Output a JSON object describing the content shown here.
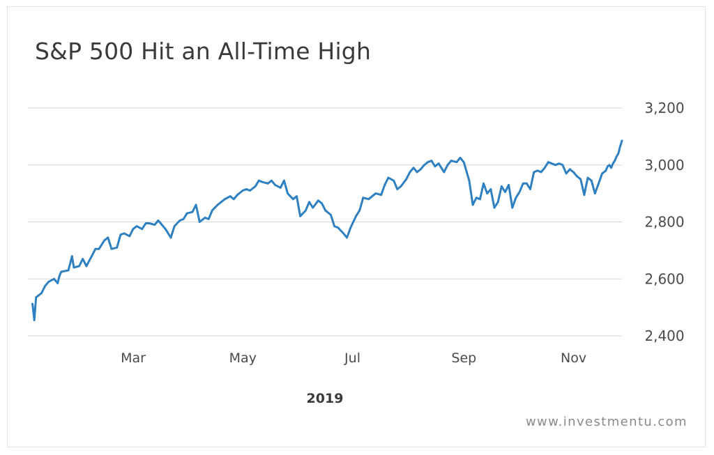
{
  "title": "S&P 500 Hit an All-Time High",
  "source": "www.investmentu.com",
  "colors": {
    "line": "#2f80c0",
    "grid": "#d6d6d6",
    "text": "#3a3a3a",
    "source_text": "#8a8a8a"
  },
  "chart_data": {
    "type": "line",
    "title": "S&P 500 Hit an All-Time High",
    "xlabel": "2019",
    "ylabel": "",
    "ylim": [
      2400,
      3200
    ],
    "y_ticks": [
      2400,
      2600,
      2800,
      3000,
      3200
    ],
    "y_tick_labels": [
      "2,400",
      "2,600",
      "2,800",
      "3,000",
      "3,200"
    ],
    "x_tick_labels": [
      {
        "date": "2019-03-01",
        "label": "Mar"
      },
      {
        "date": "2019-05-01",
        "label": "May"
      },
      {
        "date": "2019-07-01",
        "label": "Jul"
      },
      {
        "date": "2019-09-01",
        "label": "Sep"
      },
      {
        "date": "2019-11-01",
        "label": "Nov"
      }
    ],
    "xlim": [
      "2019-01-01",
      "2019-11-26"
    ],
    "grid": "horizontal",
    "series": [
      {
        "points": [
          [
            "2019-01-02",
            2512
          ],
          [
            "2019-01-03",
            2455
          ],
          [
            "2019-01-04",
            2535
          ],
          [
            "2019-01-07",
            2550
          ],
          [
            "2019-01-09",
            2575
          ],
          [
            "2019-01-11",
            2590
          ],
          [
            "2019-01-14",
            2600
          ],
          [
            "2019-01-16",
            2585
          ],
          [
            "2019-01-17",
            2610
          ],
          [
            "2019-01-18",
            2625
          ],
          [
            "2019-01-22",
            2630
          ],
          [
            "2019-01-24",
            2680
          ],
          [
            "2019-01-25",
            2640
          ],
          [
            "2019-01-28",
            2645
          ],
          [
            "2019-01-30",
            2670
          ],
          [
            "2019-02-01",
            2645
          ],
          [
            "2019-02-04",
            2680
          ],
          [
            "2019-02-06",
            2705
          ],
          [
            "2019-02-08",
            2705
          ],
          [
            "2019-02-11",
            2735
          ],
          [
            "2019-02-13",
            2745
          ],
          [
            "2019-02-15",
            2705
          ],
          [
            "2019-02-18",
            2710
          ],
          [
            "2019-02-20",
            2755
          ],
          [
            "2019-02-22",
            2760
          ],
          [
            "2019-02-25",
            2750
          ],
          [
            "2019-02-27",
            2775
          ],
          [
            "2019-03-01",
            2785
          ],
          [
            "2019-03-04",
            2775
          ],
          [
            "2019-03-06",
            2795
          ],
          [
            "2019-03-08",
            2795
          ],
          [
            "2019-03-11",
            2790
          ],
          [
            "2019-03-13",
            2805
          ],
          [
            "2019-03-15",
            2790
          ],
          [
            "2019-03-17",
            2775
          ],
          [
            "2019-03-20",
            2745
          ],
          [
            "2019-03-22",
            2785
          ],
          [
            "2019-03-25",
            2805
          ],
          [
            "2019-03-27",
            2810
          ],
          [
            "2019-03-29",
            2830
          ],
          [
            "2019-04-01",
            2835
          ],
          [
            "2019-04-03",
            2860
          ],
          [
            "2019-04-05",
            2800
          ],
          [
            "2019-04-08",
            2815
          ],
          [
            "2019-04-10",
            2810
          ],
          [
            "2019-04-12",
            2840
          ],
          [
            "2019-04-15",
            2860
          ],
          [
            "2019-04-17",
            2870
          ],
          [
            "2019-04-19",
            2880
          ],
          [
            "2019-04-22",
            2890
          ],
          [
            "2019-04-24",
            2880
          ],
          [
            "2019-04-26",
            2895
          ],
          [
            "2019-04-29",
            2910
          ],
          [
            "2019-05-01",
            2915
          ],
          [
            "2019-05-03",
            2910
          ],
          [
            "2019-05-06",
            2925
          ],
          [
            "2019-05-08",
            2945
          ],
          [
            "2019-05-10",
            2940
          ],
          [
            "2019-05-13",
            2935
          ],
          [
            "2019-05-15",
            2945
          ],
          [
            "2019-05-17",
            2930
          ],
          [
            "2019-05-20",
            2920
          ],
          [
            "2019-05-22",
            2945
          ],
          [
            "2019-05-24",
            2900
          ],
          [
            "2019-05-27",
            2880
          ],
          [
            "2019-05-29",
            2890
          ],
          [
            "2019-05-31",
            2820
          ],
          [
            "2019-06-03",
            2840
          ],
          [
            "2019-06-05",
            2870
          ],
          [
            "2019-06-07",
            2850
          ],
          [
            "2019-06-10",
            2875
          ],
          [
            "2019-06-12",
            2865
          ],
          [
            "2019-06-14",
            2840
          ],
          [
            "2019-06-17",
            2825
          ],
          [
            "2019-06-19",
            2785
          ],
          [
            "2019-06-21",
            2780
          ],
          [
            "2019-06-24",
            2760
          ],
          [
            "2019-06-26",
            2745
          ],
          [
            "2019-06-28",
            2780
          ],
          [
            "2019-07-01",
            2820
          ],
          [
            "2019-07-03",
            2840
          ],
          [
            "2019-07-05",
            2885
          ],
          [
            "2019-07-08",
            2880
          ],
          [
            "2019-07-10",
            2890
          ],
          [
            "2019-07-12",
            2900
          ],
          [
            "2019-07-15",
            2895
          ],
          [
            "2019-07-17",
            2930
          ],
          [
            "2019-07-19",
            2955
          ],
          [
            "2019-07-22",
            2945
          ],
          [
            "2019-07-24",
            2915
          ],
          [
            "2019-07-26",
            2925
          ],
          [
            "2019-07-29",
            2950
          ],
          [
            "2019-07-31",
            2975
          ],
          [
            "2019-08-02",
            2990
          ],
          [
            "2019-08-04",
            2975
          ],
          [
            "2019-08-06",
            2985
          ],
          [
            "2019-08-08",
            3000
          ],
          [
            "2019-08-10",
            3010
          ],
          [
            "2019-08-12",
            3015
          ],
          [
            "2019-08-14",
            2995
          ],
          [
            "2019-08-16",
            3005
          ],
          [
            "2019-08-19",
            2975
          ],
          [
            "2019-08-21",
            3000
          ],
          [
            "2019-08-23",
            3015
          ],
          [
            "2019-08-26",
            3010
          ],
          [
            "2019-08-28",
            3025
          ],
          [
            "2019-08-30",
            3010
          ],
          [
            "2019-09-02",
            2945
          ],
          [
            "2019-09-04",
            2860
          ],
          [
            "2019-09-06",
            2885
          ],
          [
            "2019-09-08",
            2880
          ],
          [
            "2019-09-10",
            2935
          ],
          [
            "2019-09-12",
            2900
          ],
          [
            "2019-09-14",
            2915
          ],
          [
            "2019-09-16",
            2850
          ],
          [
            "2019-09-18",
            2870
          ],
          [
            "2019-09-20",
            2925
          ],
          [
            "2019-09-22",
            2905
          ],
          [
            "2019-09-24",
            2930
          ],
          [
            "2019-09-26",
            2850
          ],
          [
            "2019-09-28",
            2885
          ],
          [
            "2019-09-30",
            2905
          ],
          [
            "2019-10-02",
            2935
          ],
          [
            "2019-10-04",
            2935
          ],
          [
            "2019-10-06",
            2915
          ],
          [
            "2019-10-08",
            2975
          ],
          [
            "2019-10-10",
            2980
          ],
          [
            "2019-10-12",
            2975
          ],
          [
            "2019-10-14",
            2990
          ],
          [
            "2019-10-16",
            3010
          ],
          [
            "2019-10-18",
            3005
          ],
          [
            "2019-10-20",
            3000
          ],
          [
            "2019-10-22",
            3005
          ],
          [
            "2019-10-24",
            3000
          ],
          [
            "2019-10-26",
            2970
          ],
          [
            "2019-10-28",
            2985
          ],
          [
            "2019-10-30",
            2975
          ],
          [
            "2019-11-01",
            2960
          ],
          [
            "2019-11-03",
            2950
          ],
          [
            "2019-11-05",
            2895
          ],
          [
            "2019-11-07",
            2955
          ],
          [
            "2019-11-09",
            2945
          ],
          [
            "2019-11-11",
            2900
          ],
          [
            "2019-11-13",
            2935
          ],
          [
            "2019-11-15",
            2970
          ],
          [
            "2019-11-17",
            2980
          ],
          [
            "2019-11-18",
            2995
          ],
          [
            "2019-11-19",
            3000
          ],
          [
            "2019-11-20",
            2990
          ],
          [
            "2019-11-21",
            3005
          ],
          [
            "2019-11-22",
            3015
          ],
          [
            "2019-11-23",
            3030
          ],
          [
            "2019-11-24",
            3040
          ],
          [
            "2019-11-25",
            3065
          ],
          [
            "2019-11-26",
            3085
          ]
        ]
      }
    ]
  }
}
